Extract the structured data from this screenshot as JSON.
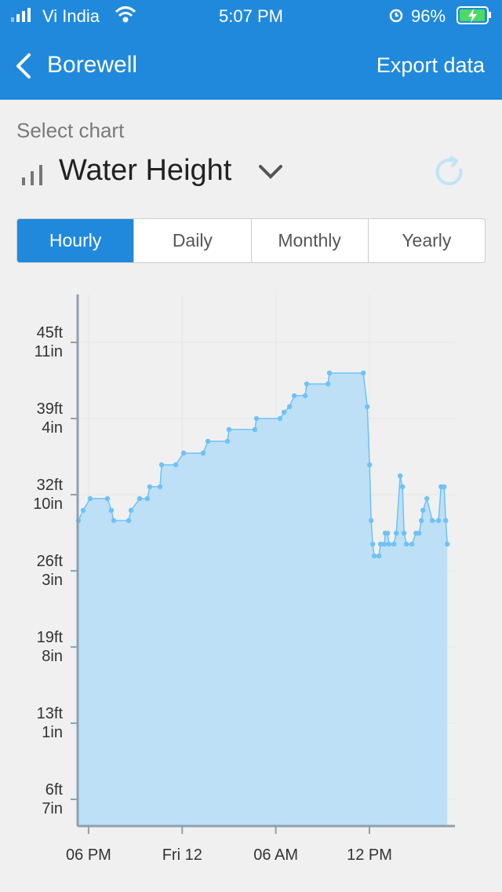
{
  "status_bar": {
    "carrier": "Vi India",
    "time": "5:07 PM",
    "battery": "96%"
  },
  "header": {
    "title": "Borewell",
    "action": "Export data"
  },
  "select_label": "Select chart",
  "selected_chart": "Water Height",
  "tabs": [
    "Hourly",
    "Daily",
    "Monthly",
    "Yearly"
  ],
  "active_tab": 0,
  "chart_data": {
    "type": "area",
    "color": "#6ec2f5",
    "fill_color": "#bde0f7",
    "grid": true,
    "x": [
      -6.65,
      -6.35,
      -5.9,
      -4.79,
      -4.54,
      -4.39,
      -3.43,
      -3.28,
      -2.73,
      -2.23,
      -2.08,
      -1.42,
      -1.32,
      -0.42,
      0.09,
      1.34,
      1.65,
      2.9,
      3.0,
      4.66,
      4.76,
      6.27,
      6.53,
      6.88,
      7.18,
      7.88,
      7.98,
      9.34,
      9.44,
      11.61,
      11.86,
      12.01,
      12.11,
      12.21,
      12.31,
      12.61,
      12.71,
      12.96,
      13.01,
      13.16,
      13.26,
      13.57,
      13.72,
      13.97,
      14.12,
      14.22,
      14.37,
      14.72,
      14.98,
      15.18,
      15.33,
      15.43,
      15.68,
      16.03,
      16.43,
      16.59,
      16.79,
      16.89,
      16.99
    ],
    "values": [
      30.58,
      31.46,
      32.47,
      32.47,
      31.46,
      30.58,
      30.58,
      31.46,
      32.47,
      32.47,
      33.49,
      33.49,
      35.38,
      35.38,
      36.39,
      36.39,
      37.41,
      37.41,
      38.42,
      38.42,
      39.37,
      39.37,
      39.91,
      40.39,
      41.33,
      41.33,
      42.35,
      42.35,
      43.29,
      43.29,
      40.39,
      35.38,
      30.58,
      28.55,
      27.53,
      27.53,
      28.55,
      28.55,
      29.49,
      29.49,
      28.55,
      28.55,
      29.49,
      34.43,
      33.49,
      29.49,
      28.55,
      28.55,
      29.49,
      29.49,
      30.58,
      31.46,
      32.47,
      30.58,
      30.58,
      33.49,
      33.49,
      30.58,
      28.55
    ],
    "xlim": [
      -6.7,
      17.48
    ],
    "xticks": [
      {
        "value": -6,
        "label": "06 PM"
      },
      {
        "value": 0,
        "label": "Fri 12"
      },
      {
        "value": 6,
        "label": "06 AM"
      },
      {
        "value": 12,
        "label": "12 PM"
      }
    ],
    "ylim": [
      4.26,
      50.06
    ],
    "yticks": [
      {
        "value": 6.56,
        "label": "6ft 7in"
      },
      {
        "value": 13.12,
        "label": "13ft 1in"
      },
      {
        "value": 19.69,
        "label": "19ft 8in"
      },
      {
        "value": 26.25,
        "label": "26ft 3in"
      },
      {
        "value": 32.81,
        "label": "32ft 10in"
      },
      {
        "value": 39.37,
        "label": "39ft 4in"
      },
      {
        "value": 45.93,
        "label": "45ft 11in"
      }
    ]
  }
}
